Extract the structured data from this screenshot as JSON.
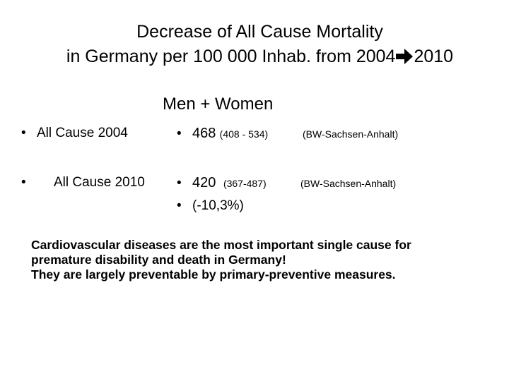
{
  "title": {
    "line1": "Decrease of All Cause Mortality",
    "line2_prefix": "in Germany  per 100 000 Inhab. from 2004",
    "arrow_icon": "right-arrow-icon",
    "line2_suffix": "2010"
  },
  "subheading": "Men   + Women",
  "rows": [
    {
      "label": "All Cause 2004",
      "value": "468",
      "range": "(408 - 534)",
      "region": "(BW-Sachsen-Anhalt)"
    },
    {
      "label": "All Cause 2010",
      "value": "420",
      "range": "(367-487)",
      "region": "(BW-Sachsen-Anhalt)",
      "change": "(-10,3%)"
    }
  ],
  "bullet_symbol": "•",
  "footer": {
    "line1": "Cardiovascular  diseases are the most important  single cause for",
    "line2": "premature disability and death in Germany!",
    "line3": "They are largely preventable  by primary-preventive measures."
  }
}
